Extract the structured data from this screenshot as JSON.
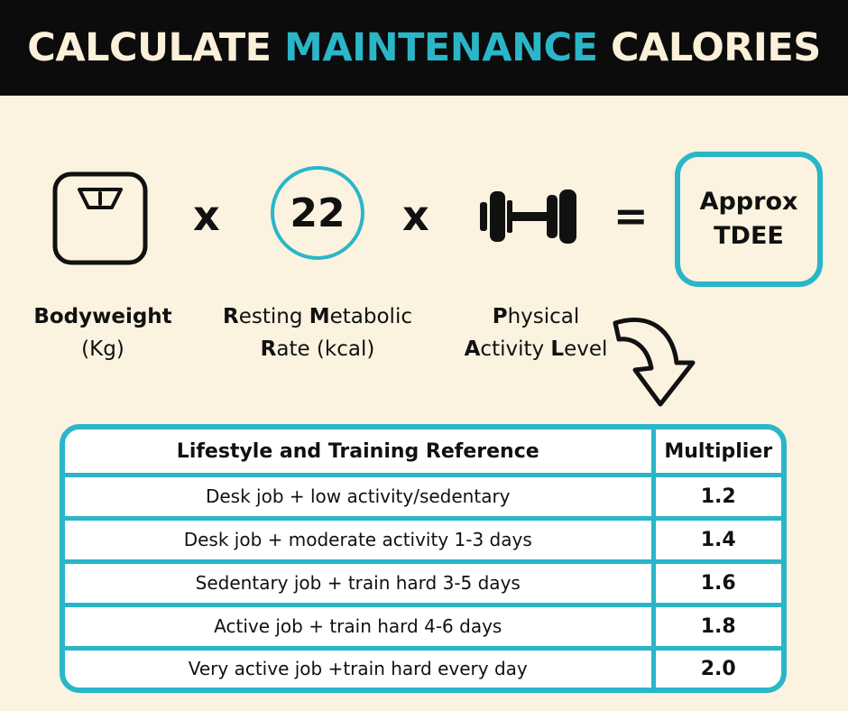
{
  "banner": {
    "title_part1": "CALCULATE",
    "title_accent": "MAINTENANCE",
    "title_part2": "CALORIES"
  },
  "formula": {
    "operator_times": "x",
    "operator_equals": "=",
    "rmr_value": "22",
    "result_line1": "Approx",
    "result_line2": "TDEE",
    "icons": [
      "scale-icon",
      "dumbbell-icon",
      "curved-arrow-icon"
    ],
    "accent_color": "#2ab6c8"
  },
  "labels": {
    "bodyweight": {
      "line1": "Bodyweight",
      "line2": "(Kg)"
    },
    "rmr": {
      "l1_a": "R",
      "l1_b": "esting ",
      "l1_c": "M",
      "l1_d": "etabolic",
      "l2_a": "R",
      "l2_b": "ate (kcal)"
    },
    "pal": {
      "l1_a": "P",
      "l1_b": "hysical",
      "l2_a": "A",
      "l2_b": "ctivity ",
      "l2_c": "L",
      "l2_d": "evel"
    }
  },
  "table": {
    "headers": [
      "Lifestyle and Training Reference",
      "Multiplier"
    ],
    "rows": [
      {
        "reference": "Desk job + low activity/sedentary",
        "multiplier": "1.2"
      },
      {
        "reference": "Desk job + moderate activity 1-3 days",
        "multiplier": "1.4"
      },
      {
        "reference": "Sedentary job + train hard 3-5 days",
        "multiplier": "1.6"
      },
      {
        "reference": "Active job + train hard 4-6 days",
        "multiplier": "1.8"
      },
      {
        "reference": "Very active job +train hard every day",
        "multiplier": "2.0"
      }
    ]
  }
}
